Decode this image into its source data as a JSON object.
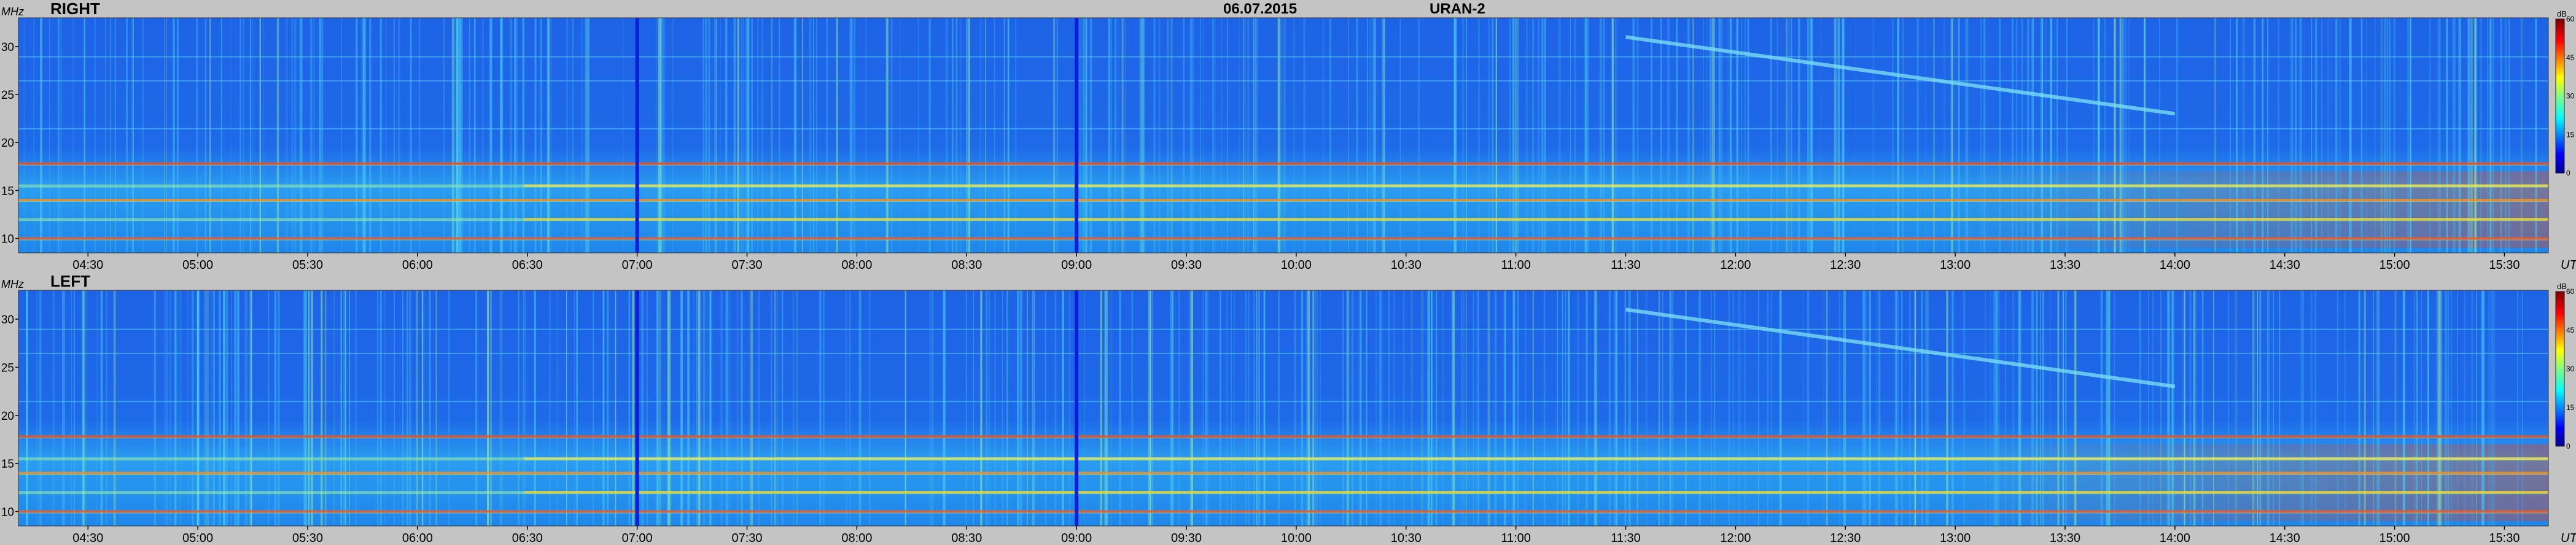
{
  "header": {
    "date": "06.07.2015",
    "instrument": "URAN-2"
  },
  "colors": {
    "background": "#c4c4c4",
    "cutoff_lines": "#0b1fd8"
  },
  "chart_data": [
    {
      "type": "heatmap",
      "title": "RIGHT",
      "ylabel": "MHz",
      "xlabel": "UT",
      "ylim": [
        8.5,
        33
      ],
      "yticks": [
        "10",
        "15",
        "20",
        "25",
        "30"
      ],
      "ytick_values": [
        10,
        15,
        20,
        25,
        30
      ],
      "xticks": [
        "04:30",
        "05:00",
        "05:30",
        "06:00",
        "06:30",
        "07:00",
        "07:30",
        "08:00",
        "08:30",
        "09:00",
        "09:30",
        "10:00",
        "10:30",
        "11:00",
        "11:30",
        "12:00",
        "12:30",
        "13:00",
        "13:30",
        "14:00",
        "14:30",
        "15:00",
        "15:30"
      ],
      "xlim": [
        "04:11",
        "15:42"
      ],
      "vertical_lines": [
        "07:00",
        "09:00"
      ],
      "colorbar": {
        "unit": "dB",
        "ticks": [
          "0",
          "15",
          "30",
          "45",
          "60"
        ],
        "range": [
          0,
          60
        ]
      },
      "bright_bands_mhz": [
        10,
        12,
        14,
        15.5,
        17.8
      ],
      "drifting_burst": {
        "from_time": "11:30",
        "to_time": "14:00",
        "from_mhz": 31,
        "to_mhz": 23
      }
    },
    {
      "type": "heatmap",
      "title": "LEFT",
      "ylabel": "MHz",
      "xlabel": "UT",
      "ylim": [
        8.5,
        33
      ],
      "yticks": [
        "10",
        "15",
        "20",
        "25",
        "30"
      ],
      "ytick_values": [
        10,
        15,
        20,
        25,
        30
      ],
      "xticks": [
        "04:30",
        "05:00",
        "05:30",
        "06:00",
        "06:30",
        "07:00",
        "07:30",
        "08:00",
        "08:30",
        "09:00",
        "09:30",
        "10:00",
        "10:30",
        "11:00",
        "11:30",
        "12:00",
        "12:30",
        "13:00",
        "13:30",
        "14:00",
        "14:30",
        "15:00",
        "15:30"
      ],
      "xlim": [
        "04:11",
        "15:42"
      ],
      "vertical_lines": [
        "07:00",
        "09:00"
      ],
      "colorbar": {
        "unit": "dB",
        "ticks": [
          "0",
          "15",
          "30",
          "45",
          "60"
        ],
        "range": [
          0,
          60
        ]
      },
      "bright_bands_mhz": [
        10,
        12,
        14,
        15.5,
        17.8
      ],
      "drifting_burst": {
        "from_time": "11:30",
        "to_time": "14:00",
        "from_mhz": 31,
        "to_mhz": 23
      }
    }
  ]
}
